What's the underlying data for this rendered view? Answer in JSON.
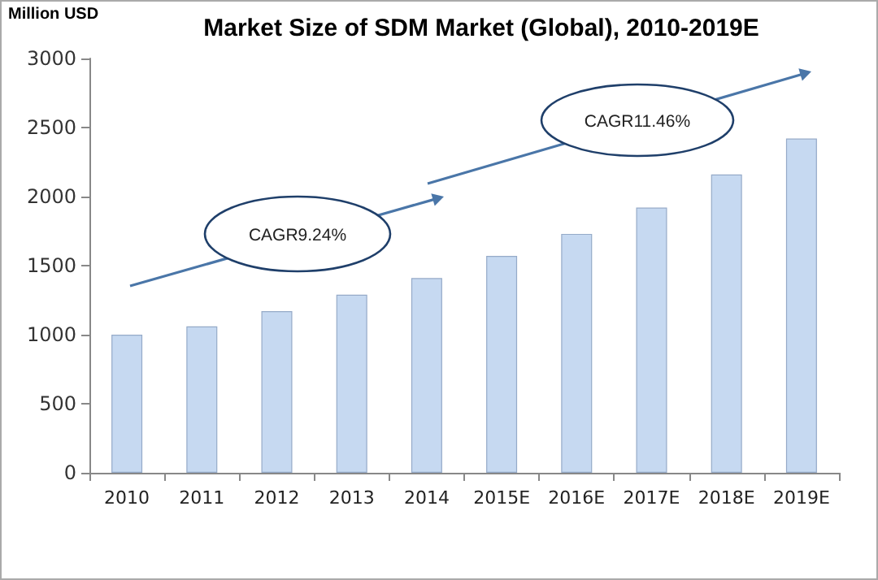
{
  "chart_data": {
    "type": "bar",
    "title": "Market Size of SDM Market (Global), 2010-2019E",
    "ylabel": "Million USD",
    "categories": [
      "2010",
      "2011",
      "2012",
      "2013",
      "2014",
      "2015E",
      "2016E",
      "2017E",
      "2018E",
      "2019E"
    ],
    "values": [
      1000,
      1060,
      1170,
      1290,
      1410,
      1570,
      1730,
      1920,
      2160,
      2420
    ],
    "color": "#c6d9f1",
    "ylim": [
      0,
      3000
    ],
    "yticks": [
      0,
      500,
      1000,
      1500,
      2000,
      2500,
      3000
    ],
    "grid": false,
    "annotations": [
      "CAGR9.24%",
      "CAGR11.46%"
    ]
  }
}
